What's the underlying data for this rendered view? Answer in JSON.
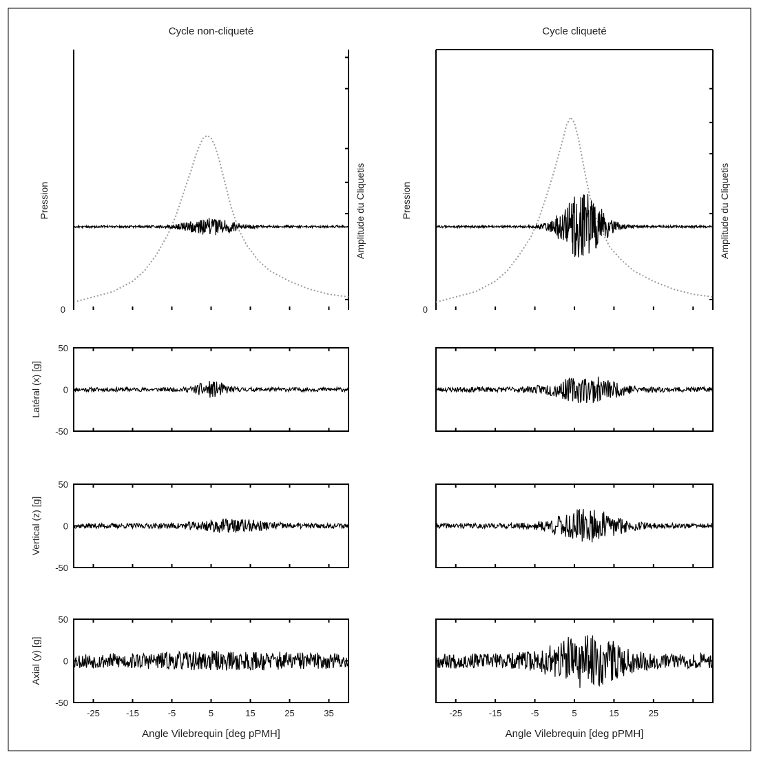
{
  "figure_frame": true,
  "chart_data": [
    {
      "id": "left-pressure",
      "type": "line",
      "title": "Cycle non-cliqueté",
      "ylabel_left": "Pression",
      "ylabel_right": "Amplitude du Cliquetis",
      "ytick_left": [
        "0"
      ],
      "xlim": [
        -30,
        40
      ],
      "ylim": [
        0,
        1
      ],
      "xticks": [
        -25,
        -15,
        -5,
        5,
        15,
        25,
        35
      ],
      "pressure": {
        "color": "#9a9a9a",
        "x": [
          -30,
          -25,
          -20,
          -15,
          -12,
          -9,
          -6,
          -4,
          -2,
          0,
          1,
          2,
          3,
          4,
          5,
          6,
          7,
          8,
          9,
          10,
          12,
          14,
          17,
          20,
          25,
          30,
          35,
          40
        ],
        "y": [
          0.03,
          0.05,
          0.07,
          0.11,
          0.15,
          0.21,
          0.29,
          0.36,
          0.45,
          0.54,
          0.59,
          0.63,
          0.66,
          0.67,
          0.66,
          0.63,
          0.58,
          0.52,
          0.46,
          0.4,
          0.31,
          0.25,
          0.19,
          0.15,
          0.11,
          0.08,
          0.06,
          0.05
        ]
      },
      "knock": {
        "color": "#000000",
        "baseline": 0.32,
        "burst_center": 5,
        "burst_width": 14,
        "burst_amp": 0.03,
        "noise_amp": 0.004
      },
      "right_ticks_y": [
        0.04,
        0.37,
        0.49,
        0.62,
        0.85,
        0.97
      ]
    },
    {
      "id": "right-pressure",
      "type": "line",
      "title": "Cycle cliqueté",
      "ylabel_left": "Pression",
      "ylabel_right": "Amplitude du Cliquetis",
      "ytick_left": [
        "0"
      ],
      "xlim": [
        -30,
        40
      ],
      "ylim": [
        0,
        1
      ],
      "xticks": [
        -25,
        -15,
        -5,
        5,
        15,
        25,
        35
      ],
      "pressure": {
        "color": "#9a9a9a",
        "x": [
          -30,
          -25,
          -20,
          -15,
          -12,
          -9,
          -6,
          -4,
          -2,
          0,
          2,
          3,
          4,
          5,
          6,
          7,
          8,
          9,
          10,
          12,
          14,
          17,
          20,
          25,
          30,
          35,
          40
        ],
        "y": [
          0.03,
          0.05,
          0.07,
          0.11,
          0.15,
          0.21,
          0.28,
          0.35,
          0.44,
          0.54,
          0.65,
          0.71,
          0.74,
          0.72,
          0.66,
          0.58,
          0.5,
          0.43,
          0.37,
          0.3,
          0.24,
          0.19,
          0.15,
          0.11,
          0.08,
          0.06,
          0.05
        ]
      },
      "knock": {
        "color": "#000000",
        "baseline": 0.32,
        "burst_center": 7,
        "burst_width": 12,
        "burst_amp": 0.13,
        "noise_amp": 0.004
      },
      "right_ticks_y": [
        0.04,
        0.37,
        0.6,
        0.72,
        0.85
      ]
    },
    {
      "id": "left-lateral",
      "type": "line",
      "ylabel": "Latéral (x) [g]",
      "yticks": [
        "50",
        "0",
        "-50"
      ],
      "xlim": [
        -30,
        40
      ],
      "ylim": [
        -50,
        50
      ],
      "signal": {
        "color": "#000000",
        "seed": 11,
        "noise_amp": 2.5,
        "burst_center": 5,
        "burst_width": 8,
        "burst_amp": 8
      }
    },
    {
      "id": "right-lateral",
      "type": "line",
      "yticks": [],
      "xlim": [
        -30,
        40
      ],
      "ylim": [
        -50,
        50
      ],
      "signal": {
        "color": "#000000",
        "seed": 23,
        "noise_amp": 3,
        "burst_center": 8,
        "burst_width": 18,
        "burst_amp": 14
      }
    },
    {
      "id": "left-vertical",
      "type": "line",
      "ylabel": "Vertical (z) [g]",
      "yticks": [
        "50",
        "0",
        "-50"
      ],
      "xlim": [
        -30,
        40
      ],
      "ylim": [
        -50,
        50
      ],
      "signal": {
        "color": "#000000",
        "seed": 37,
        "noise_amp": 3,
        "burst_center": 10,
        "burst_width": 20,
        "burst_amp": 6
      }
    },
    {
      "id": "right-vertical",
      "type": "line",
      "yticks": [],
      "xlim": [
        -30,
        40
      ],
      "ylim": [
        -50,
        50
      ],
      "signal": {
        "color": "#000000",
        "seed": 41,
        "noise_amp": 3,
        "burst_center": 8,
        "burst_width": 18,
        "burst_amp": 18
      }
    },
    {
      "id": "left-axial",
      "type": "line",
      "ylabel": "Axial (y) [g]",
      "yticks": [
        "50",
        "0",
        "-50"
      ],
      "xlim": [
        -30,
        40
      ],
      "ylim": [
        -50,
        50
      ],
      "xticklabels": [
        "-25",
        "-15",
        "-5",
        "5",
        "15",
        "25",
        "35"
      ],
      "xlabel": "Angle Vilebrequin [deg pPMH]",
      "signal": {
        "color": "#000000",
        "seed": 53,
        "noise_amp": 9,
        "burst_center": 10,
        "burst_width": 40,
        "burst_amp": 3
      }
    },
    {
      "id": "right-axial",
      "type": "line",
      "yticks": [],
      "xlim": [
        -30,
        40
      ],
      "ylim": [
        -50,
        50
      ],
      "xticklabels": [
        "-25",
        "-15",
        "-5",
        "5",
        "15",
        "25",
        ""
      ],
      "xlabel": "Angle Vilebrequin [deg pPMH]",
      "signal": {
        "color": "#000000",
        "seed": 67,
        "noise_amp": 9,
        "burst_center": 8,
        "burst_width": 20,
        "burst_amp": 24
      }
    }
  ]
}
